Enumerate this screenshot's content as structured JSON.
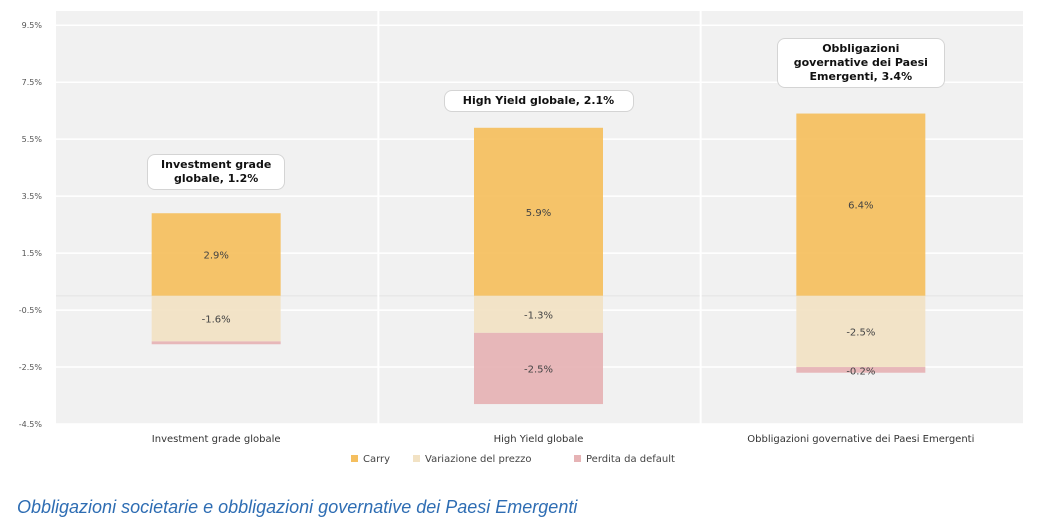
{
  "chart_data": {
    "type": "bar",
    "stacked": true,
    "title": "",
    "xlabel": "",
    "ylabel": "",
    "ylim": [
      -4.5,
      10.0
    ],
    "yticks": [
      "9.5%",
      "7.5%",
      "5.5%",
      "3.5%",
      "1.5%",
      "-0.5%",
      "-2.5%",
      "-4.5%"
    ],
    "ytick_values": [
      9.5,
      7.5,
      5.5,
      3.5,
      1.5,
      -0.5,
      -2.5,
      -4.5
    ],
    "grid": true,
    "legend_position": "bottom",
    "categories": [
      "Investment grade globale",
      "High Yield globale",
      "Obbligazioni governative dei Paesi Emergenti"
    ],
    "series": [
      {
        "name": "Carry",
        "color": "#f5bf5f",
        "values": [
          2.9,
          5.9,
          6.4
        ],
        "labels": [
          "2.9%",
          "5.9%",
          "6.4%"
        ]
      },
      {
        "name": "Variazione del prezzo",
        "color": "#f2e2c4",
        "values": [
          -1.6,
          -1.3,
          -2.5
        ],
        "labels": [
          "-1.6%",
          "-1.3%",
          "-2.5%"
        ]
      },
      {
        "name": "Perdita da default",
        "color": "#e6b3b5",
        "values": [
          -0.1,
          -2.5,
          -0.2
        ],
        "labels": [
          "",
          "-2.5%",
          "-0.2%"
        ]
      }
    ],
    "annotations": [
      {
        "category": "Investment grade globale",
        "lines": [
          "Investment grade",
          "globale, 1.2%"
        ]
      },
      {
        "category": "High Yield globale",
        "lines": [
          "High Yield globale, 2.1%"
        ]
      },
      {
        "category": "Obbligazioni governative dei Paesi Emergenti",
        "lines": [
          "Obbligazioni",
          "governative dei Paesi",
          "Emergenti, 3.4%"
        ]
      }
    ],
    "colors": {
      "plot_bg": "#f1f1f1",
      "grid": "#ffffff"
    }
  },
  "caption": "Obbligazioni societarie e obbligazioni governative dei Paesi Emergenti"
}
